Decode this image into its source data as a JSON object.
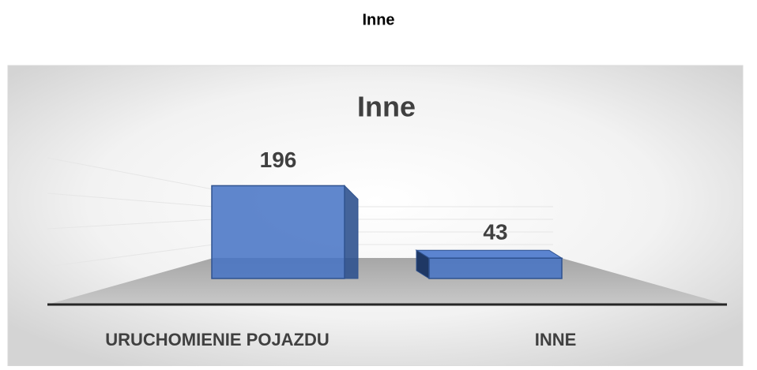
{
  "heading": "Inne",
  "chart_data": {
    "type": "bar3d",
    "title": "Inne",
    "categories": [
      "URUCHOMIENIE POJAZDU",
      "INNE"
    ],
    "values": [
      196,
      43
    ],
    "color": "#4472c4"
  }
}
